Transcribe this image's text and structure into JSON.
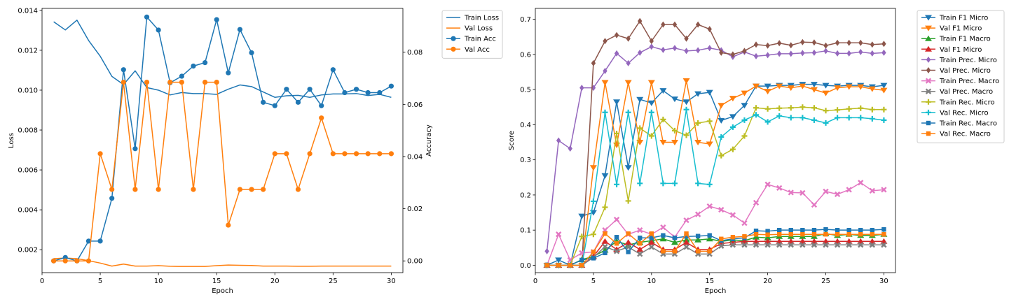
{
  "chart_data": [
    {
      "type": "line",
      "xlabel": "Epoch",
      "ylabel": "Loss",
      "y2label": "Accuracy",
      "xlim": [
        0,
        31
      ],
      "ylim": [
        0.00085,
        0.0141
      ],
      "y2lim": [
        -0.0045,
        0.0968
      ],
      "xticks": [
        0,
        5,
        10,
        15,
        20,
        25,
        30
      ],
      "yticks": [
        0.002,
        0.004,
        0.006,
        0.008,
        0.01,
        0.012,
        0.014
      ],
      "ytick_labels": [
        "0.002",
        "0.004",
        "0.006",
        "0.008",
        "0.010",
        "0.012",
        "0.014"
      ],
      "y2ticks": [
        0.0,
        0.02,
        0.04,
        0.06,
        0.08
      ],
      "y2tick_labels": [
        "0.00",
        "0.02",
        "0.04",
        "0.06",
        "0.08"
      ],
      "legend": "outside-right",
      "x": [
        1,
        2,
        3,
        4,
        5,
        6,
        7,
        8,
        9,
        10,
        11,
        12,
        13,
        14,
        15,
        16,
        17,
        18,
        19,
        20,
        21,
        22,
        23,
        24,
        25,
        26,
        27,
        28,
        29,
        30
      ],
      "series": [
        {
          "name": "Train Loss",
          "axis": "left",
          "color": "#1f77b4",
          "marker": "none",
          "values": [
            0.01343,
            0.01302,
            0.01351,
            0.01249,
            0.0117,
            0.01069,
            0.01028,
            0.01097,
            0.01013,
            0.01,
            0.00976,
            0.00988,
            0.00983,
            0.00983,
            0.00979,
            0.01005,
            0.01026,
            0.01018,
            0.00991,
            0.00964,
            0.00972,
            0.00974,
            0.00964,
            0.00976,
            0.00981,
            0.00981,
            0.00983,
            0.00973,
            0.00979,
            0.00964
          ]
        },
        {
          "name": "Val Loss",
          "axis": "left",
          "color": "#ff7f0e",
          "marker": "none",
          "values": [
            0.00155,
            0.00158,
            0.00155,
            0.00145,
            0.00133,
            0.00118,
            0.00128,
            0.00118,
            0.00118,
            0.0012,
            0.00117,
            0.00116,
            0.00116,
            0.00116,
            0.0012,
            0.00123,
            0.00122,
            0.00121,
            0.00118,
            0.00118,
            0.00118,
            0.00117,
            0.00117,
            0.00118,
            0.00118,
            0.00118,
            0.00118,
            0.00118,
            0.00118,
            0.00118
          ]
        },
        {
          "name": "Train Acc",
          "axis": "right",
          "color": "#1f77b4",
          "marker": "circle",
          "values": [
            0.0,
            0.0013,
            0.0,
            0.0076,
            0.0076,
            0.024,
            0.0733,
            0.043,
            0.0935,
            0.0885,
            0.0683,
            0.0708,
            0.0747,
            0.076,
            0.0925,
            0.0721,
            0.0887,
            0.0798,
            0.0608,
            0.0595,
            0.0658,
            0.0608,
            0.0658,
            0.0595,
            0.0733,
            0.0645,
            0.0658,
            0.0645,
            0.0645,
            0.067
          ]
        },
        {
          "name": "Val Acc",
          "axis": "right",
          "color": "#ff7f0e",
          "marker": "circle",
          "values": [
            0.0,
            0.0,
            0.0,
            0.0,
            0.0411,
            0.0274,
            0.0685,
            0.0274,
            0.0685,
            0.0274,
            0.0685,
            0.0685,
            0.0274,
            0.0685,
            0.0685,
            0.0137,
            0.0274,
            0.0274,
            0.0274,
            0.0411,
            0.0411,
            0.0274,
            0.0411,
            0.0548,
            0.0411,
            0.0411,
            0.0411,
            0.0411,
            0.0411,
            0.0411
          ]
        }
      ]
    },
    {
      "type": "line",
      "xlabel": "Epoch",
      "ylabel": "Score",
      "xlim": [
        0,
        31
      ],
      "ylim": [
        -0.021,
        0.731
      ],
      "xticks": [
        0,
        5,
        10,
        15,
        20,
        25,
        30
      ],
      "yticks": [
        0.0,
        0.1,
        0.2,
        0.3,
        0.4,
        0.5,
        0.6,
        0.7
      ],
      "ytick_labels": [
        "0.0",
        "0.1",
        "0.2",
        "0.3",
        "0.4",
        "0.5",
        "0.6",
        "0.7"
      ],
      "legend": "outside-right",
      "x": [
        1,
        2,
        3,
        4,
        5,
        6,
        7,
        8,
        9,
        10,
        11,
        12,
        13,
        14,
        15,
        16,
        17,
        18,
        19,
        20,
        21,
        22,
        23,
        24,
        25,
        26,
        27,
        28,
        29,
        30
      ],
      "series": [
        {
          "name": "Train F1 Micro",
          "color": "#1f77b4",
          "marker": "tri-down",
          "values": [
            0.0,
            0.015,
            0.0,
            0.14,
            0.15,
            0.255,
            0.465,
            0.278,
            0.472,
            0.462,
            0.497,
            0.473,
            0.465,
            0.488,
            0.492,
            0.412,
            0.423,
            0.455,
            0.51,
            0.51,
            0.512,
            0.512,
            0.515,
            0.515,
            0.512,
            0.51,
            0.512,
            0.512,
            0.508,
            0.512
          ]
        },
        {
          "name": "Val F1 Micro",
          "color": "#ff7f0e",
          "marker": "tri-down",
          "values": [
            0.0,
            0.0,
            0.0,
            0.0,
            0.278,
            0.52,
            0.342,
            0.52,
            0.35,
            0.52,
            0.35,
            0.35,
            0.525,
            0.35,
            0.345,
            0.455,
            0.475,
            0.49,
            0.51,
            0.495,
            0.51,
            0.505,
            0.51,
            0.5,
            0.49,
            0.505,
            0.508,
            0.508,
            0.502,
            0.498
          ]
        },
        {
          "name": "Train F1 Macro",
          "color": "#2ca02c",
          "marker": "tri-up",
          "values": [
            0.0,
            0.0,
            0.0,
            0.016,
            0.025,
            0.043,
            0.068,
            0.058,
            0.065,
            0.07,
            0.075,
            0.065,
            0.072,
            0.072,
            0.075,
            0.068,
            0.072,
            0.07,
            0.08,
            0.078,
            0.082,
            0.082,
            0.082,
            0.082,
            0.09,
            0.085,
            0.088,
            0.085,
            0.085,
            0.088
          ]
        },
        {
          "name": "Val F1 Micro",
          "color": "#d62728",
          "marker": "tri-up",
          "values": [
            0.0,
            0.0,
            0.0,
            0.0,
            0.025,
            0.068,
            0.045,
            0.065,
            0.045,
            0.065,
            0.045,
            0.045,
            0.065,
            0.045,
            0.045,
            0.062,
            0.065,
            0.068,
            0.068,
            0.068,
            0.068,
            0.068,
            0.068,
            0.068,
            0.068,
            0.068,
            0.068,
            0.068,
            0.068,
            0.068
          ]
        },
        {
          "name": "Train Prec. Micro",
          "color": "#9467bd",
          "marker": "diamond",
          "values": [
            0.04,
            0.355,
            0.332,
            0.505,
            0.505,
            0.553,
            0.603,
            0.575,
            0.605,
            0.622,
            0.613,
            0.618,
            0.61,
            0.612,
            0.618,
            0.612,
            0.593,
            0.607,
            0.595,
            0.598,
            0.602,
            0.602,
            0.604,
            0.605,
            0.61,
            0.603,
            0.603,
            0.607,
            0.603,
            0.605
          ]
        },
        {
          "name": "Val Prec. Micro",
          "color": "#8c564b",
          "marker": "diamond",
          "values": [
            0.0,
            0.0,
            0.0,
            0.0,
            0.575,
            0.638,
            0.655,
            0.645,
            0.695,
            0.638,
            0.685,
            0.685,
            0.645,
            0.685,
            0.672,
            0.605,
            0.6,
            0.61,
            0.628,
            0.625,
            0.632,
            0.626,
            0.635,
            0.634,
            0.625,
            0.633,
            0.633,
            0.633,
            0.628,
            0.63
          ]
        },
        {
          "name": "Train Prec. Macro",
          "color": "#e377c2",
          "marker": "cross",
          "values": [
            0.0,
            0.088,
            0.015,
            0.035,
            0.038,
            0.1,
            0.13,
            0.088,
            0.1,
            0.088,
            0.108,
            0.08,
            0.128,
            0.145,
            0.168,
            0.158,
            0.143,
            0.12,
            0.178,
            0.23,
            0.22,
            0.207,
            0.206,
            0.172,
            0.21,
            0.202,
            0.215,
            0.235,
            0.212,
            0.215
          ]
        },
        {
          "name": "Val Prec. Macro",
          "color": "#7f7f7f",
          "marker": "cross",
          "values": [
            0.0,
            0.0,
            0.0,
            0.0,
            0.022,
            0.053,
            0.04,
            0.052,
            0.032,
            0.052,
            0.032,
            0.032,
            0.052,
            0.032,
            0.032,
            0.055,
            0.058,
            0.058,
            0.058,
            0.058,
            0.058,
            0.058,
            0.058,
            0.058,
            0.058,
            0.058,
            0.058,
            0.058,
            0.058,
            0.058
          ]
        },
        {
          "name": "Train Rec. Micro",
          "color": "#bcbd22",
          "marker": "plus",
          "values": [
            0.0,
            0.0,
            0.0,
            0.082,
            0.088,
            0.165,
            0.375,
            0.183,
            0.39,
            0.368,
            0.415,
            0.383,
            0.37,
            0.405,
            0.41,
            0.312,
            0.33,
            0.368,
            0.448,
            0.445,
            0.447,
            0.448,
            0.45,
            0.448,
            0.44,
            0.442,
            0.445,
            0.447,
            0.443,
            0.443
          ]
        },
        {
          "name": "Val Rec. Micro",
          "color": "#17becf",
          "marker": "plus",
          "values": [
            0.0,
            0.0,
            0.0,
            0.0,
            0.182,
            0.435,
            0.23,
            0.435,
            0.233,
            0.435,
            0.233,
            0.233,
            0.443,
            0.233,
            0.23,
            0.365,
            0.393,
            0.413,
            0.428,
            0.408,
            0.425,
            0.42,
            0.42,
            0.413,
            0.405,
            0.42,
            0.42,
            0.42,
            0.417,
            0.413
          ]
        },
        {
          "name": "Train Rec. Macro",
          "color": "#1f77b4",
          "marker": "square",
          "values": [
            0.0,
            0.0,
            0.0,
            0.015,
            0.02,
            0.035,
            0.08,
            0.038,
            0.078,
            0.078,
            0.085,
            0.078,
            0.082,
            0.083,
            0.085,
            0.07,
            0.075,
            0.078,
            0.098,
            0.097,
            0.1,
            0.1,
            0.1,
            0.1,
            0.102,
            0.1,
            0.1,
            0.1,
            0.1,
            0.102
          ]
        },
        {
          "name": "Val Rec. Macro",
          "color": "#ff7f0e",
          "marker": "square",
          "values": [
            0.0,
            0.0,
            0.0,
            0.0,
            0.038,
            0.09,
            0.062,
            0.09,
            0.062,
            0.09,
            0.04,
            0.04,
            0.09,
            0.04,
            0.04,
            0.075,
            0.08,
            0.082,
            0.088,
            0.087,
            0.088,
            0.088,
            0.088,
            0.088,
            0.088,
            0.088,
            0.088,
            0.088,
            0.088,
            0.088
          ]
        }
      ]
    }
  ]
}
